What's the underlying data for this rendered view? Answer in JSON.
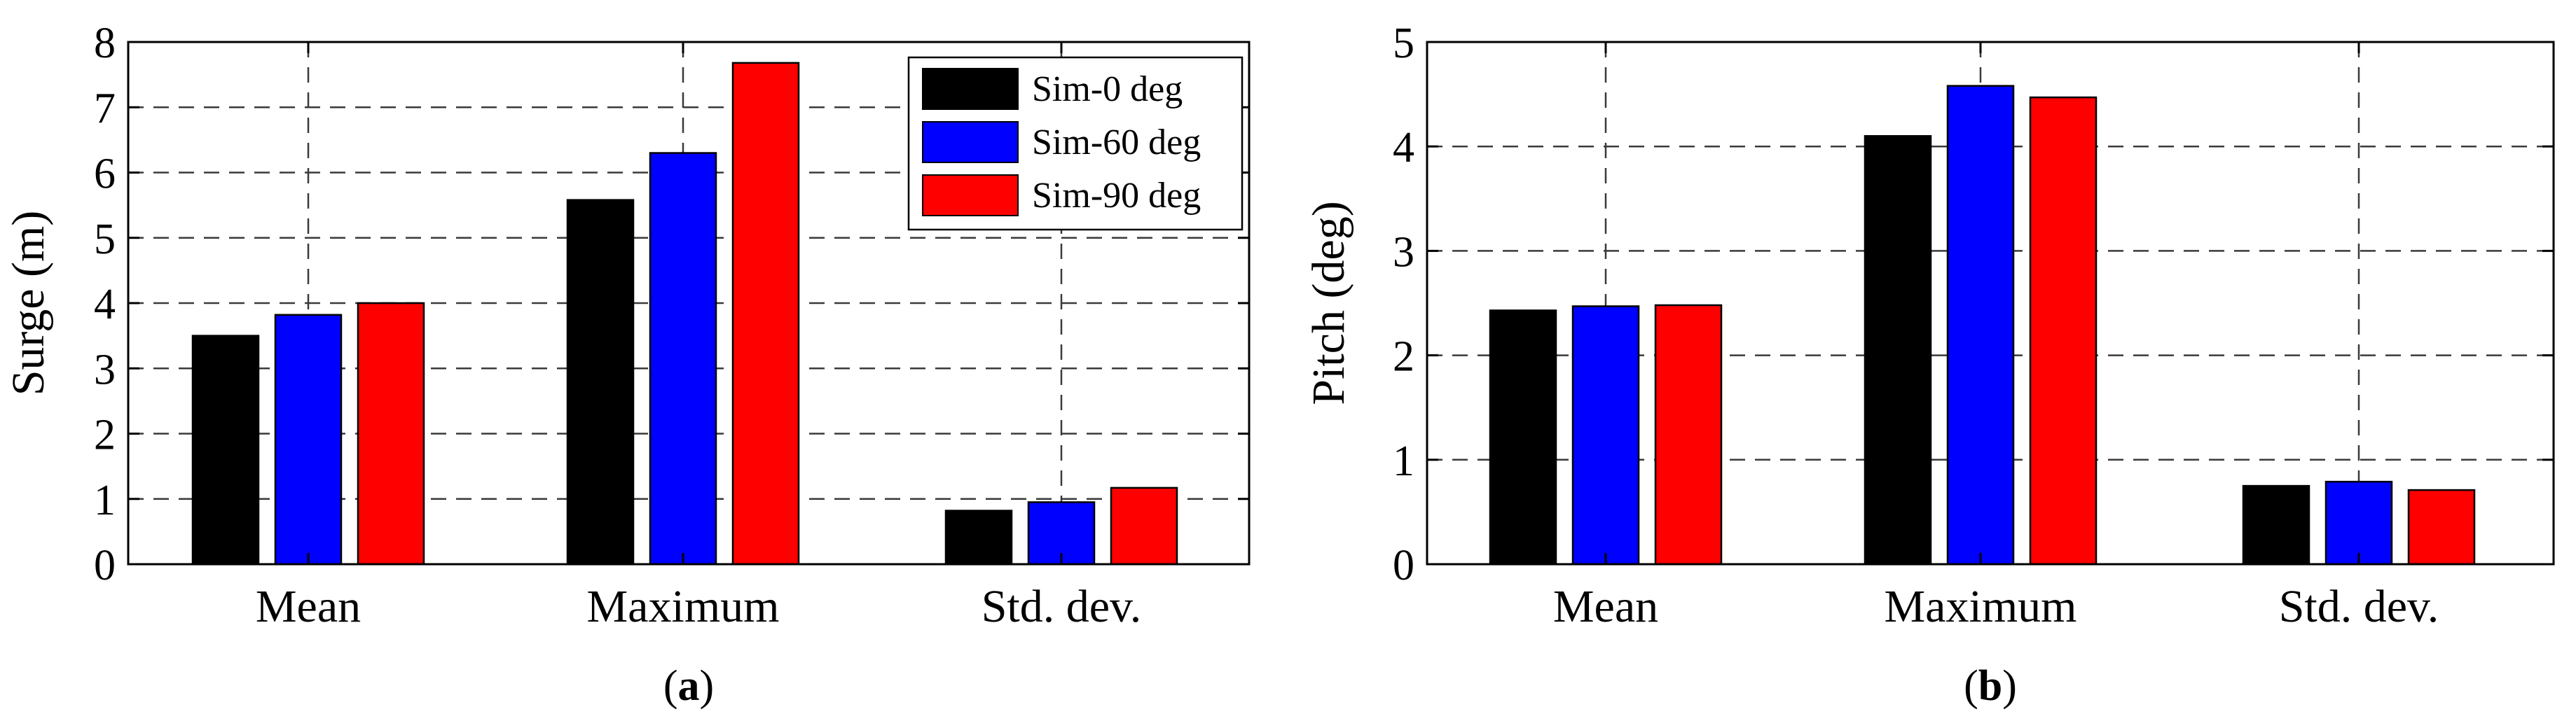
{
  "chart_data": [
    {
      "type": "bar",
      "panel_label": "(a)",
      "categories": [
        "Mean",
        "Maximum",
        "Std. dev."
      ],
      "series": [
        {
          "name": "Sim-0 deg",
          "color": "#000000",
          "values": [
            3.5,
            5.58,
            0.82
          ]
        },
        {
          "name": "Sim-60 deg",
          "color": "#0000ff",
          "values": [
            3.82,
            6.3,
            0.95
          ]
        },
        {
          "name": "Sim-90 deg",
          "color": "#ff0000",
          "values": [
            4.0,
            7.68,
            1.17
          ]
        }
      ],
      "xlabel": "",
      "ylabel": "Surge (m)",
      "ylim": [
        0,
        8
      ],
      "yticks": [
        "0",
        "1",
        "2",
        "3",
        "4",
        "5",
        "6",
        "7",
        "8"
      ],
      "grid": true,
      "legend_position": "top-right"
    },
    {
      "type": "bar",
      "panel_label": "(b)",
      "categories": [
        "Mean",
        "Maximum",
        "Std. dev."
      ],
      "series": [
        {
          "name": "Sim-0 deg",
          "color": "#000000",
          "values": [
            2.43,
            4.1,
            0.75
          ]
        },
        {
          "name": "Sim-60 deg",
          "color": "#0000ff",
          "values": [
            2.47,
            4.58,
            0.79
          ]
        },
        {
          "name": "Sim-90 deg",
          "color": "#ff0000",
          "values": [
            2.48,
            4.47,
            0.71
          ]
        }
      ],
      "xlabel": "",
      "ylabel": "Pitch (deg)",
      "ylim": [
        0,
        5
      ],
      "yticks": [
        "0",
        "1",
        "2",
        "3",
        "4",
        "5"
      ],
      "grid": true,
      "legend_position": "none"
    }
  ]
}
